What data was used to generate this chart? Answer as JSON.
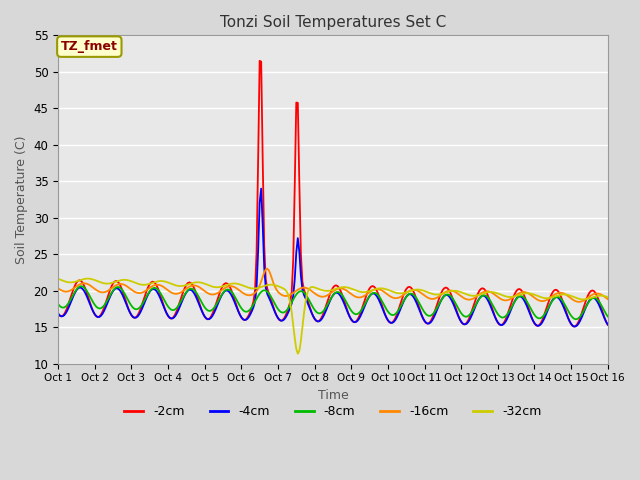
{
  "title": "Tonzi Soil Temperatures Set C",
  "xlabel": "Time",
  "ylabel": "Soil Temperature (C)",
  "ylim": [
    10,
    55
  ],
  "yticks": [
    10,
    15,
    20,
    25,
    30,
    35,
    40,
    45,
    50,
    55
  ],
  "fig_bg": "#d8d8d8",
  "plot_bg": "#e8e8e8",
  "grid_color": "#ffffff",
  "annotation_text": "TZ_fmet",
  "annotation_color": "#8b0000",
  "annotation_bg": "#ffffcc",
  "annotation_edge": "#999900",
  "series_colors": {
    "-2cm": "#ff0000",
    "-4cm": "#0000ff",
    "-8cm": "#00bb00",
    "-16cm": "#ff8800",
    "-32cm": "#cccc00"
  },
  "x_tick_labels": [
    "Oct 1",
    "Oct 2",
    "Oct 3",
    "Oct 4",
    "Oct 5",
    "Oct 6",
    "Oct 7",
    "Oct 8",
    "Oct 9",
    "Oct 10",
    "Oct 11",
    "Oct 12",
    "Oct 13",
    "Oct 14",
    "Oct 15",
    "Oct 16"
  ],
  "num_days": 15,
  "pts_per_day": 24
}
